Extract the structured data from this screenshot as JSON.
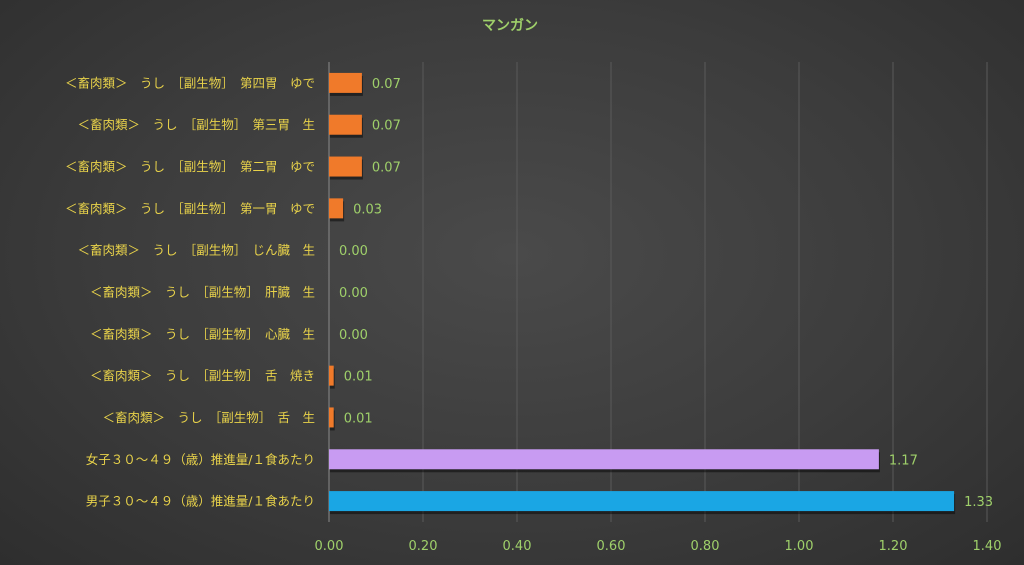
{
  "chart_data": {
    "type": "bar",
    "orientation": "horizontal",
    "title": "マンガン",
    "xlabel": "",
    "ylabel": "",
    "xlim": [
      0,
      1.4
    ],
    "x_ticks": [
      "0.00",
      "0.20",
      "0.40",
      "0.60",
      "0.80",
      "1.00",
      "1.20",
      "1.40"
    ],
    "x_tick_values": [
      0,
      0.2,
      0.4,
      0.6,
      0.8,
      1.0,
      1.2,
      1.4
    ],
    "grid": true,
    "categories": [
      "＜畜肉類＞　うし　［副生物］　第四胃　ゆで",
      "＜畜肉類＞　うし　［副生物］　第三胃　生",
      "＜畜肉類＞　うし　［副生物］　第二胃　ゆで",
      "＜畜肉類＞　うし　［副生物］　第一胃　ゆで",
      "＜畜肉類＞　うし　［副生物］　じん臓　生",
      "＜畜肉類＞　うし　［副生物］　肝臓　生",
      "＜畜肉類＞　うし　［副生物］　心臓　生",
      "＜畜肉類＞　うし　［副生物］　舌　焼き",
      "＜畜肉類＞　うし　［副生物］　舌　生",
      "女子３０～４９（歳）推進量/１食あたり",
      "男子３０～４９（歳）推進量/１食あたり"
    ],
    "values": [
      0.07,
      0.07,
      0.07,
      0.03,
      0.0,
      0.0,
      0.0,
      0.01,
      0.01,
      1.17,
      1.33
    ],
    "value_labels": [
      "0.07",
      "0.07",
      "0.07",
      "0.03",
      "0.00",
      "0.00",
      "0.00",
      "0.01",
      "0.01",
      "1.17",
      "1.33"
    ],
    "colors": [
      "#f07a2a",
      "#f07a2a",
      "#f07a2a",
      "#f07a2a",
      "#f07a2a",
      "#f07a2a",
      "#f07a2a",
      "#f07a2a",
      "#f07a2a",
      "#c89bf2",
      "#1aa6e4"
    ]
  }
}
